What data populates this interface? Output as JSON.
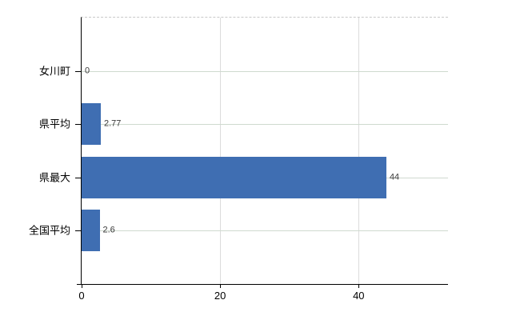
{
  "chart_data": {
    "type": "bar",
    "orientation": "horizontal",
    "categories": [
      "女川町",
      "県平均",
      "県最大",
      "全国平均"
    ],
    "values": [
      0,
      2.77,
      44,
      2.6
    ],
    "value_labels": [
      "0",
      "2.77",
      "44",
      "2.6"
    ],
    "x_ticks": [
      0,
      20,
      40
    ],
    "x_tick_labels": [
      "0",
      "20",
      "40"
    ],
    "xlim": [
      0,
      52.9
    ],
    "title": "",
    "xlabel": "",
    "ylabel": "",
    "grid": true,
    "legend": "none",
    "colors": {
      "bar": "#3f6eb2",
      "axis": "#000000",
      "h_gridline": "#cfdacf",
      "v_gridline": "#dcdcdc",
      "top_border_dashed": "#c9c9c9",
      "value_label_text": "#3a3a3a",
      "tick_label_text": "#000000",
      "background": "#ffffff"
    }
  }
}
